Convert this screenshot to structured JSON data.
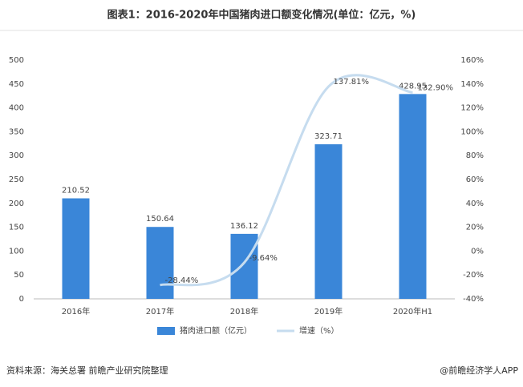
{
  "chart_data": {
    "type": "bar-line",
    "title": "图表1：2016-2020年中国猪肉进口额变化情况(单位：亿元，%)",
    "categories": [
      "2016年",
      "2017年",
      "2018年",
      "2019年",
      "2020年H1"
    ],
    "series": [
      {
        "name": "猪肉进口额（亿元）",
        "type": "bar",
        "color": "#3a86d8",
        "values": [
          210.52,
          150.64,
          136.12,
          323.71,
          428.95
        ]
      },
      {
        "name": "增速（%）",
        "type": "line",
        "axis": "y2",
        "color": "#c6dcef",
        "values": [
          null,
          -28.44,
          -9.64,
          137.81,
          132.9
        ],
        "value_labels": [
          null,
          "-28.44%",
          "-9.64%",
          "137.81%",
          "132.90%"
        ]
      }
    ],
    "ylim": [
      0,
      500
    ],
    "yticks": [
      0,
      50,
      100,
      150,
      200,
      250,
      300,
      350,
      400,
      450,
      500
    ],
    "y2lim": [
      -40,
      160
    ],
    "y2ticks": [
      {
        "value": -40,
        "label": "-40%"
      },
      {
        "value": -20,
        "label": "-20%"
      },
      {
        "value": 0,
        "label": "0%"
      },
      {
        "value": 20,
        "label": "20%"
      },
      {
        "value": 40,
        "label": "40%"
      },
      {
        "value": 60,
        "label": "60%"
      },
      {
        "value": 80,
        "label": "80%"
      },
      {
        "value": 100,
        "label": "100%"
      },
      {
        "value": 120,
        "label": "120%"
      },
      {
        "value": 140,
        "label": "140%"
      },
      {
        "value": 160,
        "label": "160%"
      }
    ],
    "source": "资料来源：海关总署 前瞻产业研究院整理",
    "credit": "@前瞻经济学人APP"
  }
}
